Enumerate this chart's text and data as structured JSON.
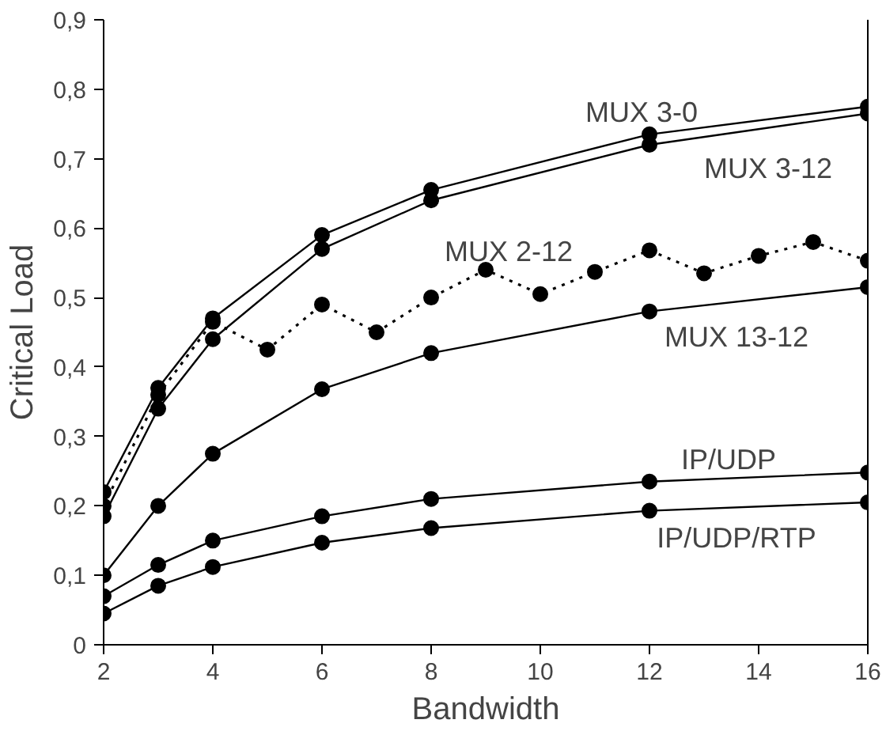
{
  "chart_data": {
    "type": "line",
    "xlabel": "Bandwidth",
    "ylabel": "Critical Load",
    "xlim": [
      2,
      16
    ],
    "xticks": [
      2,
      4,
      6,
      8,
      10,
      12,
      14,
      16
    ],
    "ylim": [
      0,
      0.9
    ],
    "yticks": [
      0,
      {
        "value": 0.1,
        "label": "0,1"
      },
      {
        "value": 0.2,
        "label": "0,2"
      },
      {
        "value": 0.3,
        "label": "0,3"
      },
      {
        "value": 0.4,
        "label": "0,4"
      },
      {
        "value": 0.5,
        "label": "0,5"
      },
      {
        "value": 0.6,
        "label": "0,6"
      },
      {
        "value": 0.7,
        "label": "0,7"
      },
      {
        "value": 0.8,
        "label": "0,8"
      },
      {
        "value": 0.9,
        "label": "0,9"
      }
    ],
    "grid": false,
    "marker": "circle",
    "x": [
      2,
      3,
      4,
      6,
      8,
      12,
      16
    ],
    "series": [
      {
        "name": "MUX 3-0",
        "color": "#000000",
        "line_style": "solid",
        "values": [
          0.22,
          0.37,
          0.47,
          0.59,
          0.655,
          0.735,
          0.775
        ]
      },
      {
        "name": "MUX 3-12",
        "color": "#000000",
        "line_style": "solid",
        "values": [
          0.185,
          0.34,
          0.44,
          0.57,
          0.64,
          0.72,
          0.765
        ]
      },
      {
        "name": "MUX 2-12",
        "color": "#000000",
        "line_style": "dotted",
        "x": [
          2,
          3,
          4,
          5,
          6,
          7,
          8,
          9,
          10,
          11,
          12,
          13,
          14,
          15,
          16
        ],
        "values": [
          0.2,
          0.36,
          0.465,
          0.425,
          0.49,
          0.45,
          0.5,
          0.54,
          0.505,
          0.537,
          0.568,
          0.535,
          0.56,
          0.58,
          0.553
        ]
      },
      {
        "name": "MUX 13-12",
        "color": "#000000",
        "line_style": "solid",
        "values": [
          0.1,
          0.2,
          0.275,
          0.368,
          0.42,
          0.48,
          0.515
        ]
      },
      {
        "name": "IP/UDP",
        "color": "#000000",
        "line_style": "solid",
        "values": [
          0.07,
          0.115,
          0.15,
          0.185,
          0.21,
          0.235,
          0.248
        ]
      },
      {
        "name": "IP/UDP/RTP",
        "color": "#000000",
        "line_style": "solid",
        "values": [
          0.045,
          0.085,
          0.112,
          0.147,
          0.168,
          0.193,
          0.205
        ]
      }
    ]
  }
}
